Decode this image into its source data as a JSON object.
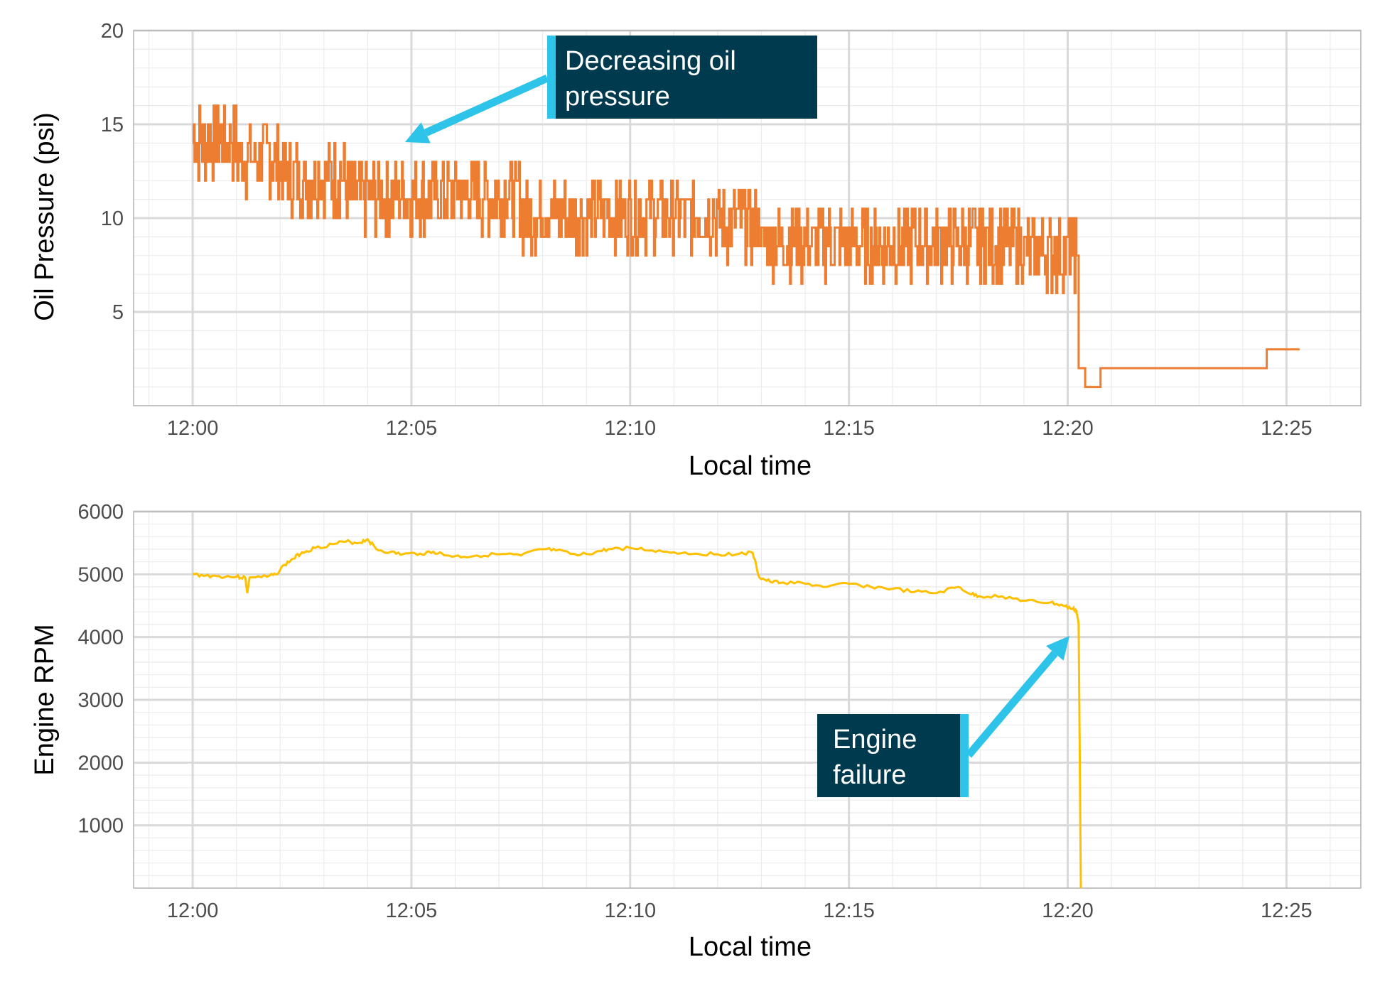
{
  "colors": {
    "oil": "#ed7d31",
    "rpm": "#ffc000",
    "arrow": "#2ec3e8",
    "annotation_bg": "#003a4f"
  },
  "chart_data": [
    {
      "type": "line",
      "xlabel": "Local time",
      "ylabel": "Oil Pressure (psi)",
      "x_ticks": [
        "12:00",
        "12:05",
        "12:10",
        "12:15",
        "12:20",
        "12:25"
      ],
      "y_ticks": [
        5,
        10,
        15,
        20
      ],
      "xlim": [
        -1.35,
        26.7
      ],
      "ylim": [
        0,
        20
      ],
      "grid": true,
      "series": [
        {
          "x": [
            0,
            0.5,
            1,
            1.5,
            2,
            2.5,
            3,
            3.5,
            4,
            4.5,
            5,
            5.5,
            6,
            6.5,
            7,
            7.5,
            8,
            8.5,
            9,
            9.5,
            10,
            10.5,
            11,
            11.5,
            12,
            12.5,
            12.9,
            13,
            13.5,
            14,
            14.5,
            15,
            15.5,
            16,
            16.5,
            17,
            17.5,
            18,
            18.5,
            19,
            19.5,
            20,
            20.2,
            20.25,
            20.35,
            20.4,
            20.7,
            20.75,
            24.5,
            24.55,
            25.3
          ],
          "y": [
            14,
            14,
            13,
            13,
            12,
            12,
            12,
            11,
            11,
            11,
            11,
            11,
            11,
            11,
            11,
            10,
            10,
            10,
            10,
            10,
            10,
            10,
            10,
            10,
            9.5,
            9.5,
            9.5,
            8.5,
            8.5,
            8.5,
            8.5,
            8.5,
            8.5,
            8.5,
            8.5,
            8.5,
            8.5,
            8.5,
            8.5,
            8,
            8,
            8,
            8,
            2,
            2,
            1,
            1,
            2,
            2,
            3,
            3
          ]
        }
      ],
      "annotation": "Decreasing oil pressure"
    },
    {
      "type": "line",
      "xlabel": "Local time",
      "ylabel": "Engine RPM",
      "x_ticks": [
        "12:00",
        "12:05",
        "12:10",
        "12:15",
        "12:20",
        "12:25"
      ],
      "y_ticks": [
        1000,
        2000,
        3000,
        4000,
        5000,
        6000
      ],
      "xlim": [
        -1.35,
        26.7
      ],
      "ylim": [
        0,
        6000
      ],
      "grid": true,
      "series": [
        {
          "x": [
            0,
            0.3,
            0.6,
            1.0,
            1.2,
            1.25,
            1.3,
            1.7,
            1.9,
            2.1,
            2.3,
            2.5,
            2.8,
            3.2,
            3.5,
            3.8,
            4.0,
            4.2,
            4.5,
            4.8,
            5.2,
            5.5,
            5.8,
            6.2,
            6.5,
            7.0,
            7.5,
            8.0,
            8.3,
            8.8,
            9.2,
            9.5,
            10.0,
            10.5,
            11.0,
            11.5,
            12.0,
            12.5,
            12.8,
            12.95,
            13.2,
            13.5,
            14.0,
            14.5,
            15.0,
            15.5,
            16.0,
            16.5,
            17.0,
            17.5,
            17.8,
            18.0,
            18.5,
            19.0,
            19.3,
            19.6,
            19.9,
            20.1,
            20.2,
            20.25,
            20.3
          ],
          "y": [
            5000,
            4980,
            4970,
            4960,
            4950,
            4700,
            4950,
            4960,
            5000,
            5150,
            5250,
            5350,
            5420,
            5480,
            5520,
            5500,
            5560,
            5400,
            5350,
            5320,
            5330,
            5360,
            5300,
            5280,
            5300,
            5320,
            5300,
            5400,
            5380,
            5300,
            5350,
            5400,
            5420,
            5380,
            5350,
            5330,
            5320,
            5330,
            5340,
            4950,
            4880,
            4870,
            4850,
            4800,
            4850,
            4800,
            4770,
            4720,
            4700,
            4800,
            4680,
            4650,
            4650,
            4580,
            4560,
            4550,
            4500,
            4450,
            4420,
            4200,
            0
          ]
        }
      ],
      "annotation": "Engine failure"
    }
  ],
  "annotations": {
    "oil": {
      "line1": "Decreasing oil",
      "line2": "pressure"
    },
    "rpm": {
      "line1": "Engine",
      "line2": "failure"
    }
  }
}
